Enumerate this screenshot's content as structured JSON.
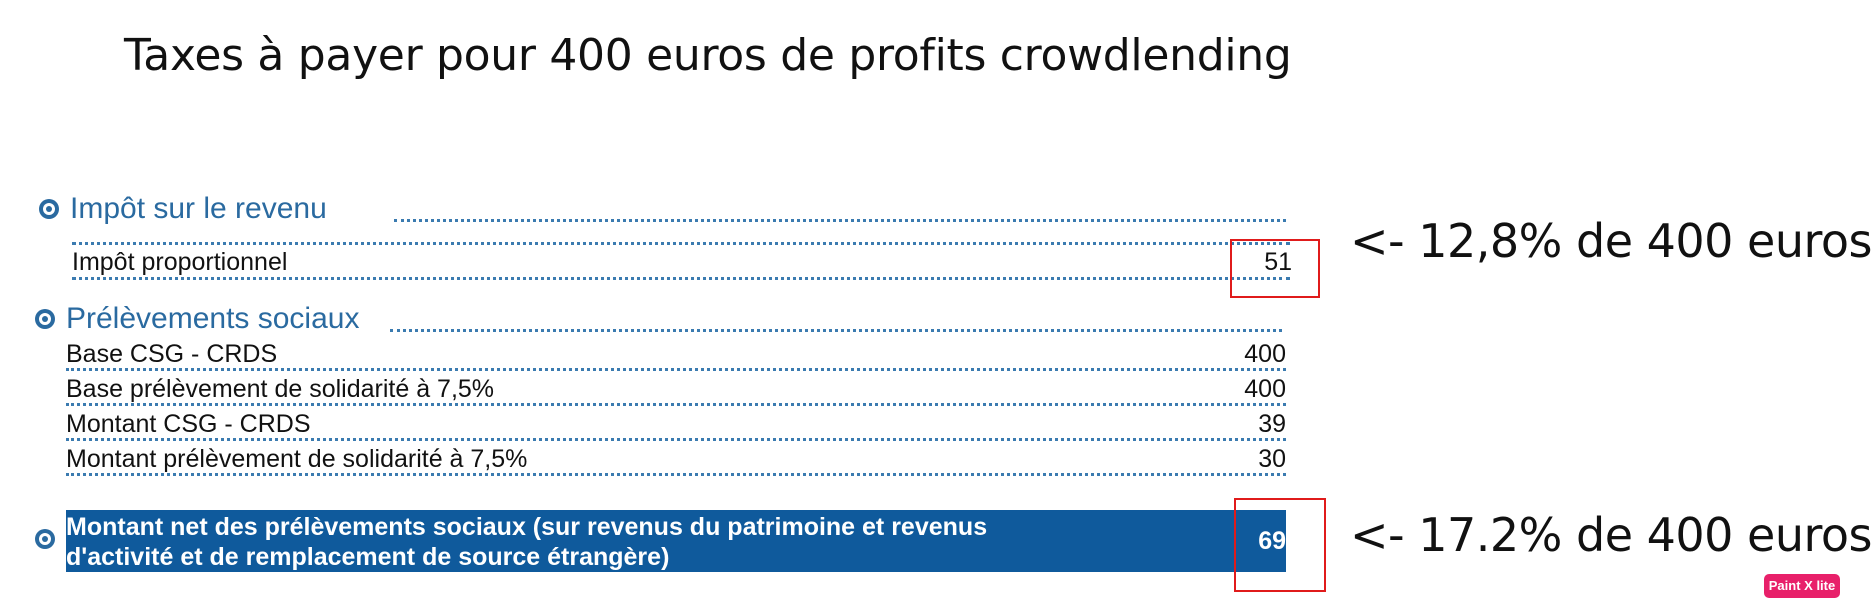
{
  "title": "Taxes à payer pour 400 euros de profits crowdlending",
  "income_tax": {
    "heading": "Impôt sur le revenu",
    "row": {
      "label": "Impôt proportionnel",
      "value": "51"
    }
  },
  "social": {
    "heading": "Prélèvements sociaux",
    "rows": [
      {
        "label": "Base CSG - CRDS",
        "value": "400"
      },
      {
        "label": "Base prélèvement de solidarité à 7,5%",
        "value": "400"
      },
      {
        "label": "Montant CSG - CRDS",
        "value": "39"
      },
      {
        "label": "Montant prélèvement de solidarité à 7,5%",
        "value": "30"
      }
    ]
  },
  "net": {
    "label_line1": "Montant net des prélèvements sociaux (sur revenus du patrimoine et revenus",
    "label_line2": "d'activité et de remplacement de source étrangère)",
    "value": "69"
  },
  "annotations": {
    "income_note": "<- 12,8% de 400 euros",
    "social_note": "<- 17.2% de 400 euros"
  },
  "badge": "Paint X lite",
  "colors": {
    "section_blue": "#2a6aa0",
    "highlight_bg": "#0f5a9c",
    "red_box": "#e01b1b",
    "badge": "#e8206a"
  }
}
